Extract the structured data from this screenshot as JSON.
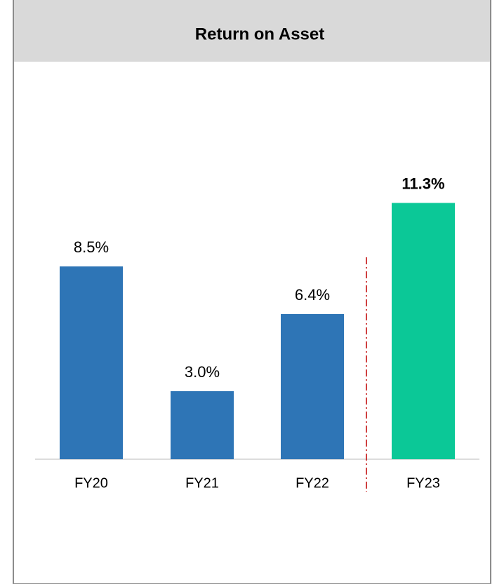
{
  "chart_data": {
    "type": "bar",
    "title": "Return on Asset",
    "categories": [
      "FY20",
      "FY21",
      "FY22",
      "FY23"
    ],
    "values": [
      8.5,
      3.0,
      6.4,
      11.3
    ],
    "value_labels": [
      "8.5%",
      "3.0%",
      "6.4%",
      "11.3%"
    ],
    "colors": [
      "#2e75b6",
      "#2e75b6",
      "#2e75b6",
      "#0bc897"
    ],
    "bold_labels": [
      false,
      false,
      false,
      true
    ]
  }
}
